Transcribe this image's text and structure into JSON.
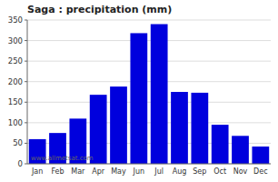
{
  "chart_data": {
    "type": "bar",
    "title": "Saga : precipitation (mm)",
    "categories": [
      "Jan",
      "Feb",
      "Mar",
      "Apr",
      "May",
      "Jun",
      "Jul",
      "Aug",
      "Sep",
      "Oct",
      "Nov",
      "Dec"
    ],
    "values": [
      60,
      75,
      110,
      168,
      188,
      318,
      340,
      175,
      173,
      95,
      68,
      42
    ],
    "color": "#0000dd",
    "ylim": [
      0,
      350
    ],
    "yticks": [
      0,
      50,
      100,
      150,
      200,
      250,
      300,
      350
    ],
    "grid": true,
    "annotations": [
      "www.allmetsat.com"
    ]
  }
}
